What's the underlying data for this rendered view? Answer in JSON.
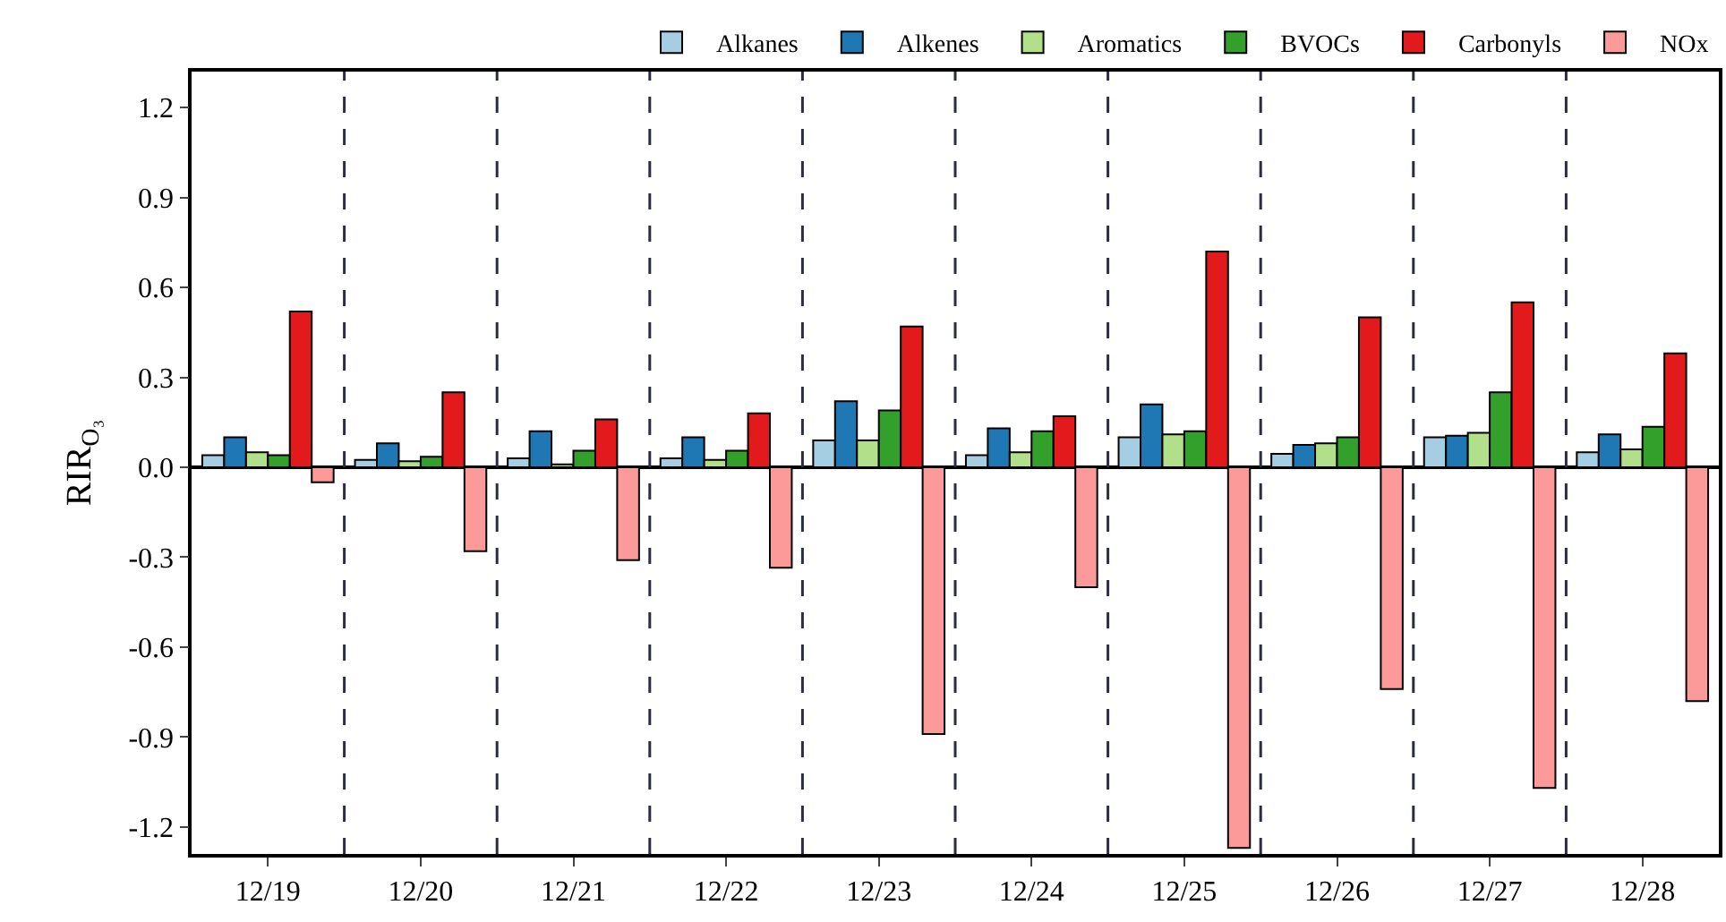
{
  "chart_data": {
    "type": "bar",
    "ylabel": "RIR$_{O₃}$",
    "categories": [
      "12/19",
      "12/20",
      "12/21",
      "12/22",
      "12/23",
      "12/24",
      "12/25",
      "12/26",
      "12/27",
      "12/28"
    ],
    "series": [
      {
        "name": "Alkanes",
        "color": "#a6cee3",
        "values": [
          0.04,
          0.025,
          0.03,
          0.03,
          0.09,
          0.04,
          0.1,
          0.045,
          0.1,
          0.05
        ]
      },
      {
        "name": "Alkenes",
        "color": "#1f78b4",
        "values": [
          0.1,
          0.08,
          0.12,
          0.1,
          0.22,
          0.13,
          0.21,
          0.075,
          0.105,
          0.11
        ]
      },
      {
        "name": "Aromatics",
        "color": "#b2df8a",
        "values": [
          0.05,
          0.02,
          0.01,
          0.025,
          0.09,
          0.05,
          0.11,
          0.08,
          0.115,
          0.06
        ]
      },
      {
        "name": "BVOCs",
        "color": "#33a02c",
        "values": [
          0.04,
          0.035,
          0.055,
          0.055,
          0.19,
          0.12,
          0.12,
          0.1,
          0.25,
          0.135
        ]
      },
      {
        "name": "Carbonyls",
        "color": "#e31a1c",
        "values": [
          0.52,
          0.25,
          0.16,
          0.18,
          0.47,
          0.17,
          0.72,
          0.5,
          0.55,
          0.38
        ]
      },
      {
        "name": "NOx",
        "color": "#fb9a99",
        "values": [
          -0.05,
          -0.28,
          -0.31,
          -0.335,
          -0.89,
          -0.4,
          -1.27,
          -0.74,
          -1.07,
          -0.78
        ]
      }
    ],
    "ylim": [
      -1.29,
      1.32
    ],
    "yticks": [
      -1.2,
      -0.9,
      -0.6,
      -0.3,
      {
        "value": 0,
        "label": "0.0"
      },
      0.3,
      0.6,
      0.9,
      1.2
    ],
    "legend": "top"
  }
}
